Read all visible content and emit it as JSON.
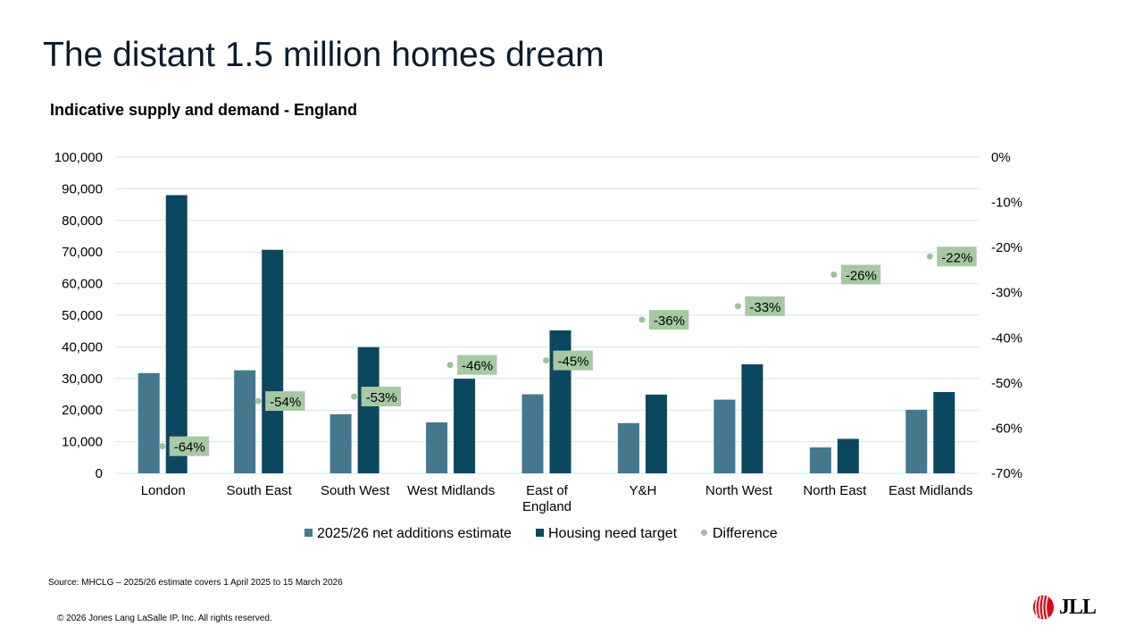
{
  "slide": {
    "title": "The distant 1.5 million homes dream",
    "source": "Source: MHCLG – 2025/26 estimate covers 1 April 2025 to 15 March 2026",
    "copyright": "© 2026 Jones Lang LaSalle IP, Inc. All rights reserved.",
    "logo_text": "JLL"
  },
  "colors": {
    "estimate": "#43788f",
    "target": "#0c4761",
    "difference_marker": "#9dc29b",
    "label_box": "#a6c9a3",
    "gridline": "#cfe6ee",
    "logo_red": "#e30613"
  },
  "chart_data": {
    "type": "bar",
    "title": "Indicative supply and demand - England",
    "categories": [
      "London",
      "South East",
      "South West",
      "West Midlands",
      "East of England",
      "Y&H",
      "North West",
      "North East",
      "East Midlands"
    ],
    "category_lines": [
      [
        "London"
      ],
      [
        "South East"
      ],
      [
        "South West"
      ],
      [
        "West Midlands"
      ],
      [
        "East of",
        "England"
      ],
      [
        "Y&H"
      ],
      [
        "North West"
      ],
      [
        "North East"
      ],
      [
        "East Midlands"
      ]
    ],
    "series": [
      {
        "name": "2025/26 net additions estimate",
        "axis": "left",
        "values": [
          31700,
          32600,
          18700,
          16100,
          25000,
          15900,
          23300,
          8200,
          20100
        ]
      },
      {
        "name": "Housing need target",
        "axis": "left",
        "values": [
          88000,
          70700,
          39900,
          29900,
          45200,
          24900,
          34500,
          10900,
          25700
        ]
      },
      {
        "name": "Difference",
        "axis": "right",
        "type": "scatter",
        "values": [
          -64,
          -54,
          -53,
          -46,
          -45,
          -36,
          -33,
          -26,
          -22
        ],
        "labels": [
          "-64%",
          "-54%",
          "-53%",
          "-46%",
          "-45%",
          "-36%",
          "-33%",
          "-26%",
          "-22%"
        ]
      }
    ],
    "y_left": {
      "min": 0,
      "max": 100000,
      "step": 10000,
      "tick_labels": [
        "0",
        "10,000",
        "20,000",
        "30,000",
        "40,000",
        "50,000",
        "60,000",
        "70,000",
        "80,000",
        "90,000",
        "100,000"
      ]
    },
    "y_right": {
      "min": -70,
      "max": 0,
      "step": 10,
      "tick_labels": [
        "-70%",
        "-60%",
        "-50%",
        "-40%",
        "-30%",
        "-20%",
        "-10%",
        "0%"
      ]
    },
    "grid": true,
    "legend_position": "bottom"
  }
}
